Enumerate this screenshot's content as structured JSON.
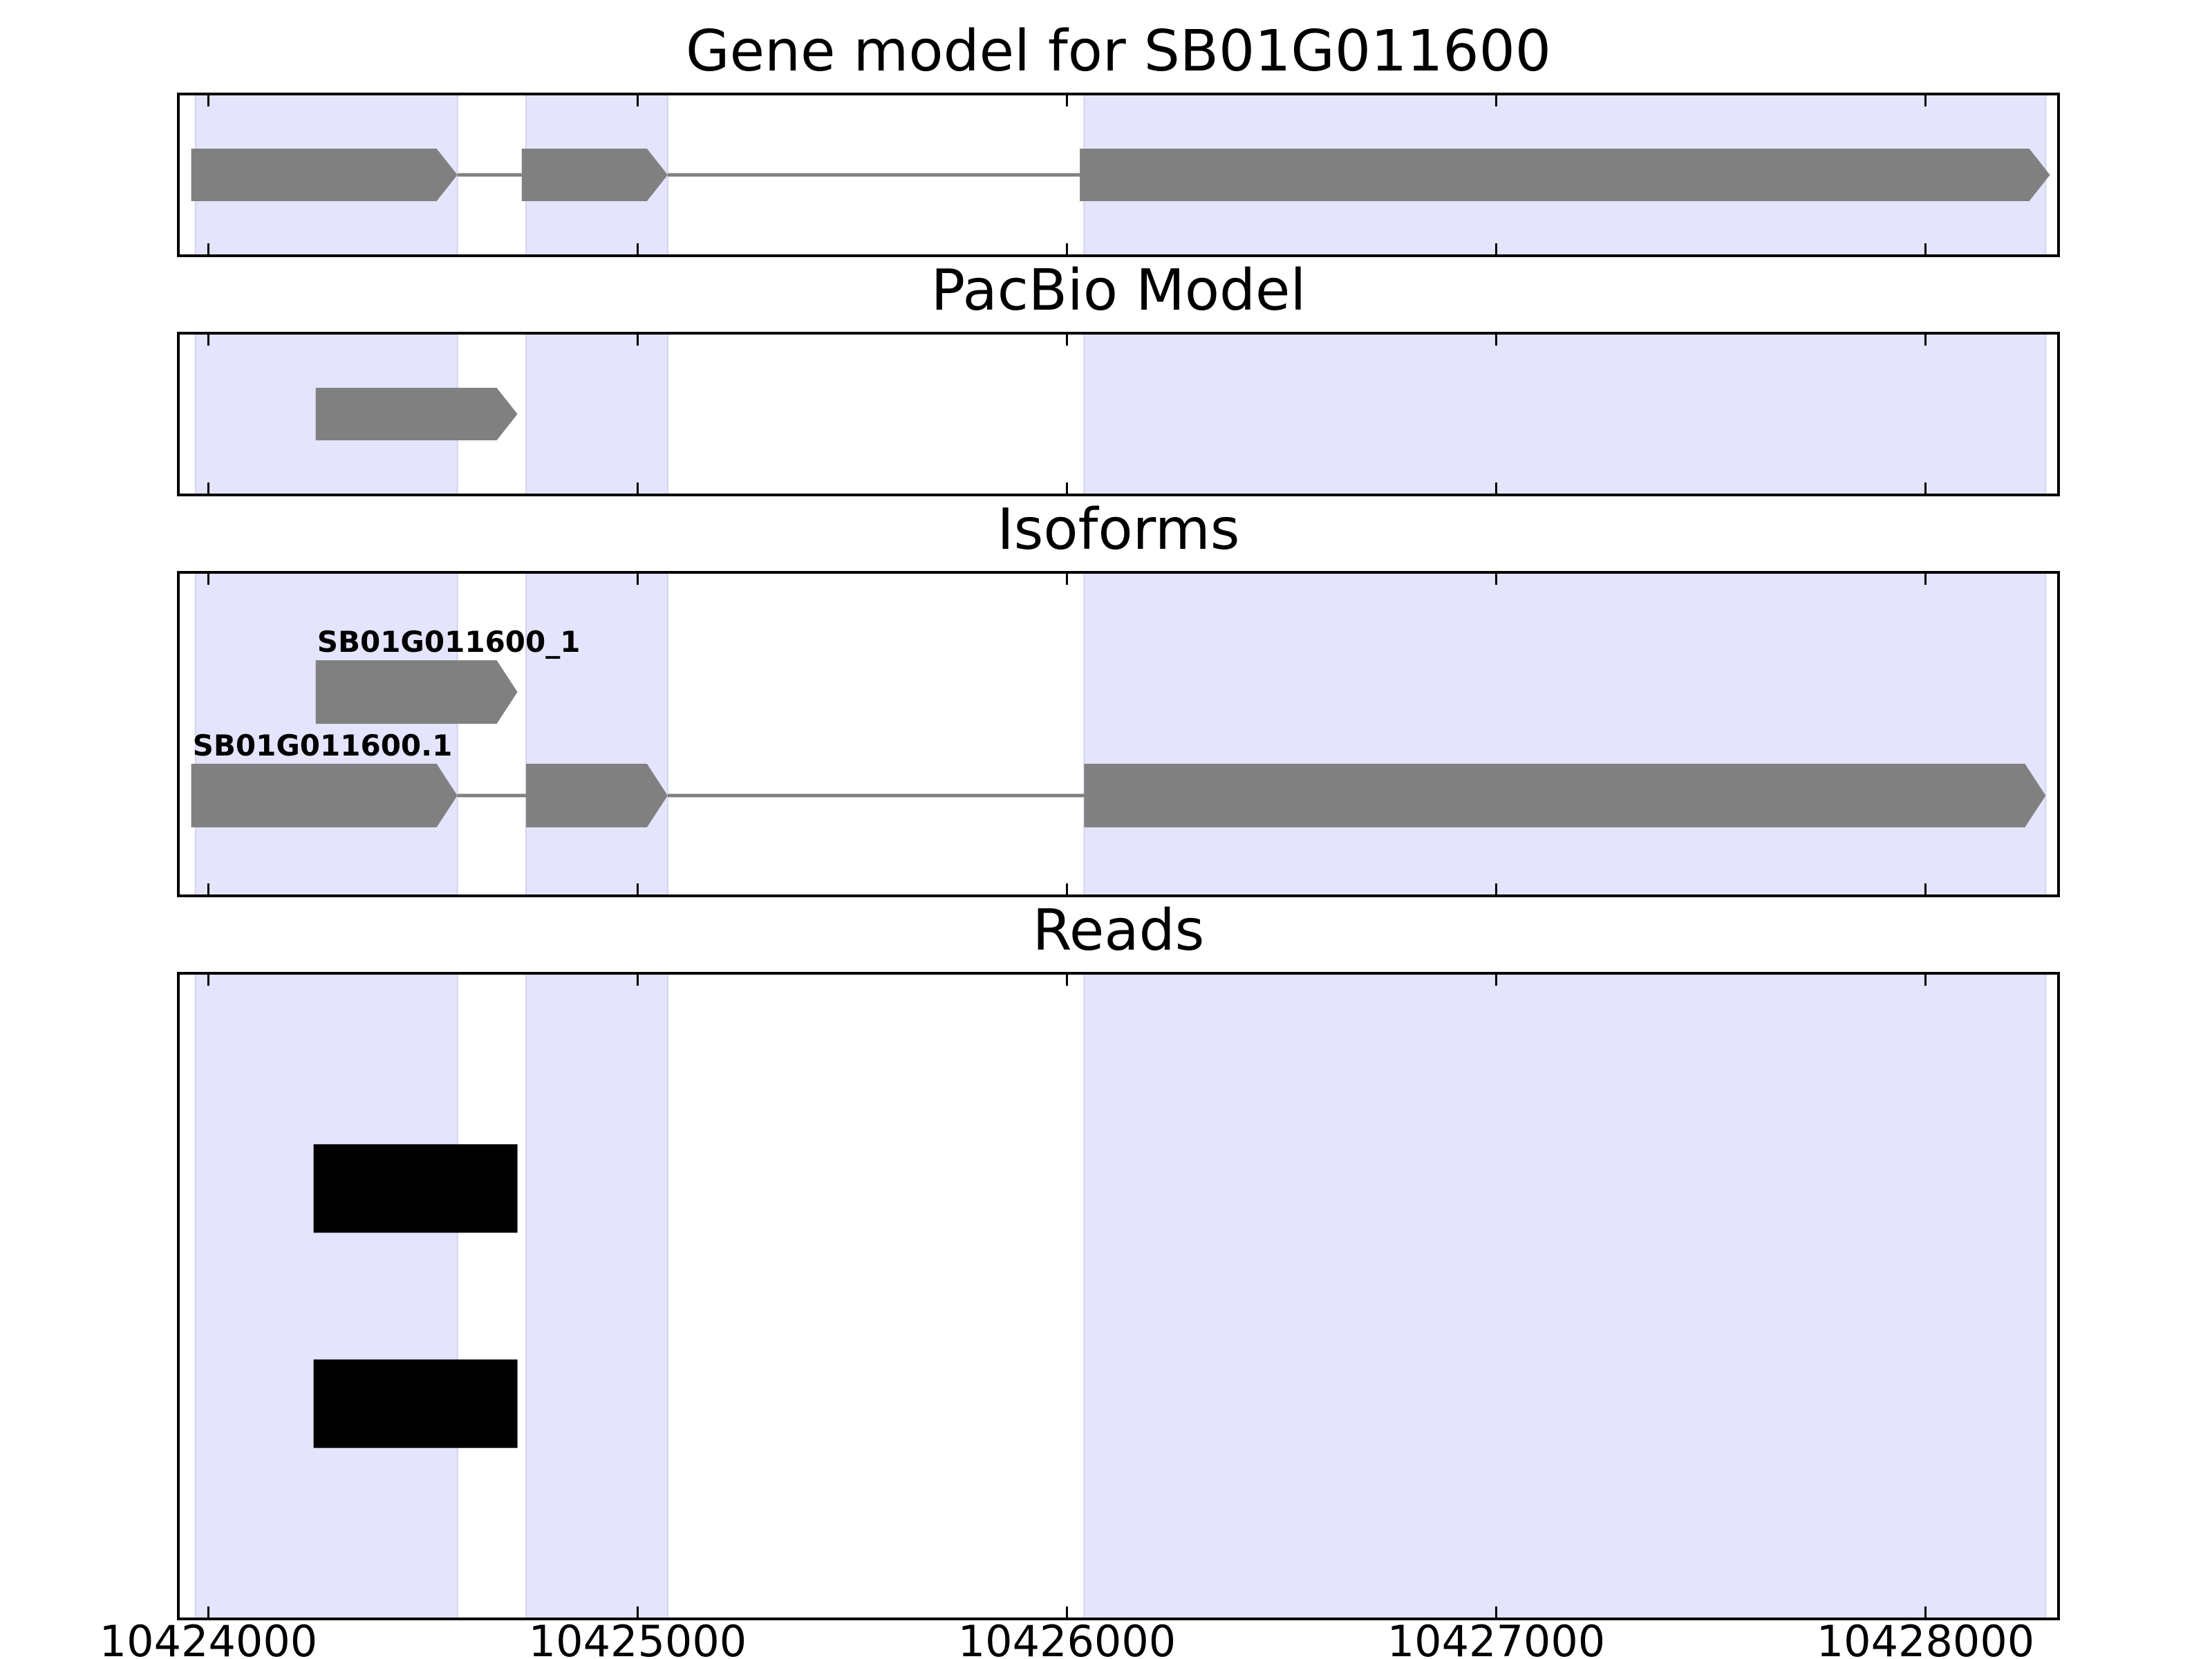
{
  "chart_data": {
    "type": "gene-track",
    "x_range": [
      10423930,
      10428310
    ],
    "x_ticks": [
      10424000,
      10425000,
      10426000,
      10427000,
      10428000
    ],
    "x_tick_labels": [
      "10424000",
      "10425000",
      "10426000",
      "10427000",
      "10428000"
    ],
    "exon_regions": [
      [
        10423970,
        10424580
      ],
      [
        10424740,
        10425070
      ],
      [
        10426040,
        10428280
      ]
    ],
    "colors": {
      "highlight": "#e4e4fc",
      "feature": "#808080",
      "read": "#000000",
      "intron": "#808080"
    },
    "panels": [
      {
        "id": "gene-model",
        "title": "Gene model for SB01G011600",
        "y_range": [
          0,
          1
        ],
        "tracks": [
          {
            "label": "",
            "y": 0.5,
            "exons": [
              [
                10423960,
                10424580
              ],
              [
                10424730,
                10425070
              ],
              [
                10426030,
                10428290
              ]
            ]
          }
        ]
      },
      {
        "id": "pacbio-model",
        "title": "PacBio Model",
        "y_range": [
          0,
          1
        ],
        "tracks": [
          {
            "label": "",
            "y": 0.5,
            "exons": [
              [
                10424250,
                10424720
              ]
            ]
          }
        ]
      },
      {
        "id": "isoforms",
        "title": "Isoforms",
        "y_range": [
          0,
          1
        ],
        "tracks": [
          {
            "label": "SB01G011600_1",
            "y": 0.63,
            "exons": [
              [
                10424250,
                10424720
              ]
            ]
          },
          {
            "label": "SB01G011600.1",
            "y": 0.31,
            "exons": [
              [
                10423960,
                10424580
              ],
              [
                10424740,
                10425070
              ],
              [
                10426040,
                10428280
              ]
            ]
          }
        ]
      },
      {
        "id": "reads",
        "title": "Reads",
        "y_range": [
          0,
          3
        ],
        "reads": [
          {
            "y": 2,
            "blocks": [
              [
                10424245,
                10424720
              ]
            ]
          },
          {
            "y": 1,
            "blocks": [
              [
                10424245,
                10424720
              ]
            ]
          }
        ]
      }
    ]
  }
}
